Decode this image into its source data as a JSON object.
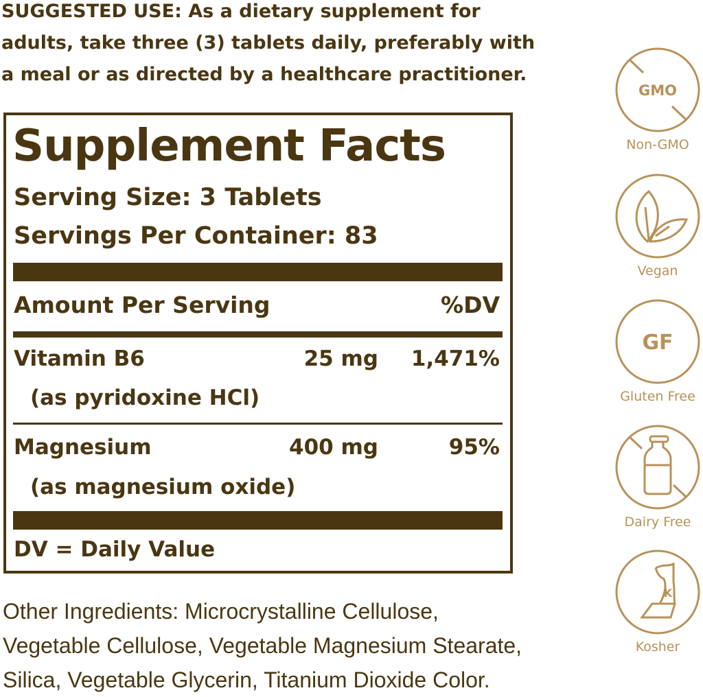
{
  "suggested_use": "SUGGESTED USE: As a dietary supplement for adults, take three (3) tablets daily, preferably with a meal or as directed by a healthcare practitioner.",
  "facts": {
    "title": "Supplement Facts",
    "serving_size": "Serving Size: 3 Tablets",
    "servings_per_container": "Servings Per Container: 83",
    "amount_header": "Amount Per Serving",
    "dv_header": "%DV",
    "rows": [
      {
        "name": "Vitamin B6",
        "amount": "25 mg",
        "dv": "1,471%",
        "source": "(as pyridoxine HCl)"
      },
      {
        "name": "Magnesium",
        "amount": "400 mg",
        "dv": "95%",
        "source": "(as magnesium oxide)"
      }
    ],
    "footnote": "DV = Daily Value"
  },
  "other_ingredients": "Other Ingredients: Microcrystalline Cellulose, Vegetable Cellulose, Vegetable Magnesium Stearate, Silica, Vegetable Glycerin, Titanium Dioxide Color.",
  "badges": [
    {
      "icon": "gmo-crossed-icon",
      "text": "GMO",
      "label": "Non-GMO"
    },
    {
      "icon": "leaves-icon",
      "label": "Vegan"
    },
    {
      "icon": "gf-icon",
      "text": "GF",
      "label": "Gluten Free"
    },
    {
      "icon": "milk-bottle-crossed-icon",
      "label": "Dairy Free"
    },
    {
      "icon": "kosher-icon",
      "text": "K",
      "label": "Kosher"
    }
  ],
  "colors": {
    "text": "#4a3712",
    "badge": "#b8925a"
  }
}
